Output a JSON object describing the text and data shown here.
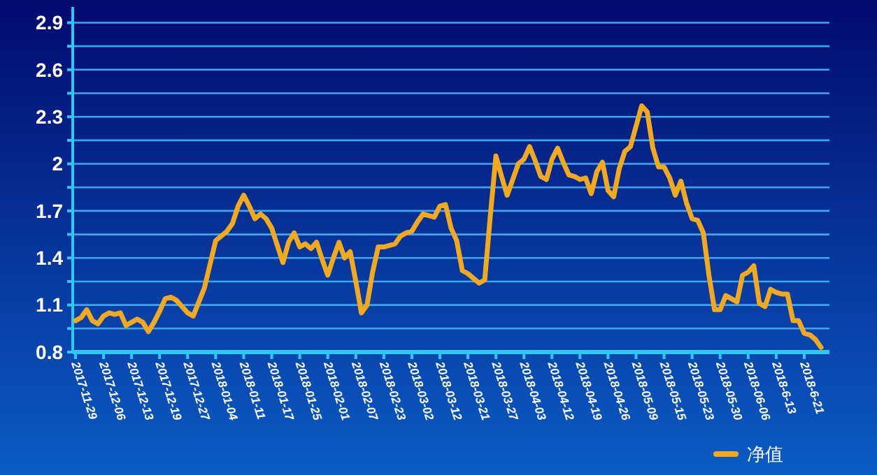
{
  "chart_data": {
    "type": "line",
    "categories": [
      "2017-11-29",
      null,
      null,
      null,
      null,
      "2017-12-06",
      null,
      null,
      null,
      null,
      "2017-12-13",
      null,
      null,
      null,
      null,
      "2017-12-19",
      null,
      null,
      null,
      null,
      "2017-12-27",
      null,
      null,
      null,
      null,
      "2018-01-04",
      null,
      null,
      null,
      null,
      "2018-01-11",
      null,
      null,
      null,
      null,
      "2018-01-17",
      null,
      null,
      null,
      null,
      "2018-01-25",
      null,
      null,
      null,
      null,
      "2018-02-01",
      null,
      null,
      null,
      null,
      "2018-02-07",
      null,
      null,
      null,
      null,
      "2018-02-23",
      null,
      null,
      null,
      null,
      "2018-03-02",
      null,
      null,
      null,
      null,
      "2018-03-12",
      null,
      null,
      null,
      null,
      "2018-03-21",
      null,
      null,
      null,
      null,
      "2018-03-27",
      null,
      null,
      null,
      null,
      "2018-04-03",
      null,
      null,
      null,
      null,
      "2018-04-12",
      null,
      null,
      null,
      null,
      "2018-04-19",
      null,
      null,
      null,
      null,
      "2018-04-26",
      null,
      null,
      null,
      null,
      "2018-05-09",
      null,
      null,
      null,
      null,
      "2018-05-15",
      null,
      null,
      null,
      null,
      "2018-05-23",
      null,
      null,
      null,
      null,
      "2018-05-30",
      null,
      null,
      null,
      null,
      "2018-06-06",
      null,
      null,
      null,
      null,
      "2018-6-13",
      null,
      null,
      null,
      null,
      "2018-6-21",
      null,
      null,
      null
    ],
    "series": [
      {
        "name": "净值",
        "color": "#f2a91e",
        "values": [
          1.0,
          1.02,
          1.07,
          1.0,
          0.98,
          1.03,
          1.05,
          1.04,
          1.05,
          0.97,
          0.99,
          1.01,
          0.99,
          0.93,
          0.99,
          1.06,
          1.14,
          1.15,
          1.13,
          1.09,
          1.05,
          1.03,
          1.12,
          1.21,
          1.36,
          1.51,
          1.54,
          1.57,
          1.62,
          1.73,
          1.8,
          1.73,
          1.65,
          1.68,
          1.65,
          1.59,
          1.48,
          1.37,
          1.5,
          1.56,
          1.47,
          1.49,
          1.46,
          1.5,
          1.39,
          1.29,
          1.4,
          1.5,
          1.4,
          1.44,
          1.25,
          1.05,
          1.1,
          1.31,
          1.47,
          1.47,
          1.48,
          1.49,
          1.54,
          1.56,
          1.57,
          1.63,
          1.68,
          1.67,
          1.66,
          1.73,
          1.74,
          1.59,
          1.51,
          1.32,
          1.3,
          1.27,
          1.24,
          1.26,
          1.67,
          2.05,
          1.92,
          1.8,
          1.9,
          2.0,
          2.03,
          2.11,
          2.02,
          1.92,
          1.9,
          2.03,
          2.1,
          2.01,
          1.93,
          1.92,
          1.9,
          1.91,
          1.81,
          1.95,
          2.01,
          1.83,
          1.79,
          1.97,
          2.08,
          2.11,
          2.24,
          2.37,
          2.33,
          2.1,
          1.98,
          1.98,
          1.91,
          1.8,
          1.89,
          1.75,
          1.65,
          1.64,
          1.56,
          1.29,
          1.07,
          1.07,
          1.16,
          1.14,
          1.12,
          1.29,
          1.31,
          1.35,
          1.11,
          1.09,
          1.2,
          1.18,
          1.17,
          1.17,
          1.0,
          1.0,
          0.92,
          0.91,
          0.88,
          0.83
        ]
      }
    ],
    "ylim": [
      0.8,
      3.0
    ],
    "yticks": [
      0.8,
      {
        "value": 0.95,
        "label": null
      },
      1.1,
      {
        "value": 1.25,
        "label": null
      },
      1.4,
      {
        "value": 1.55,
        "label": null
      },
      1.7,
      {
        "value": 1.85,
        "label": null
      },
      2,
      {
        "value": 2.15,
        "label": null
      },
      2.3,
      {
        "value": 2.45,
        "label": null
      },
      2.6,
      {
        "value": 2.75,
        "label": null
      },
      2.9
    ],
    "grid": "y",
    "legend": "bottom right",
    "line_style": "solid",
    "marker": "none"
  }
}
